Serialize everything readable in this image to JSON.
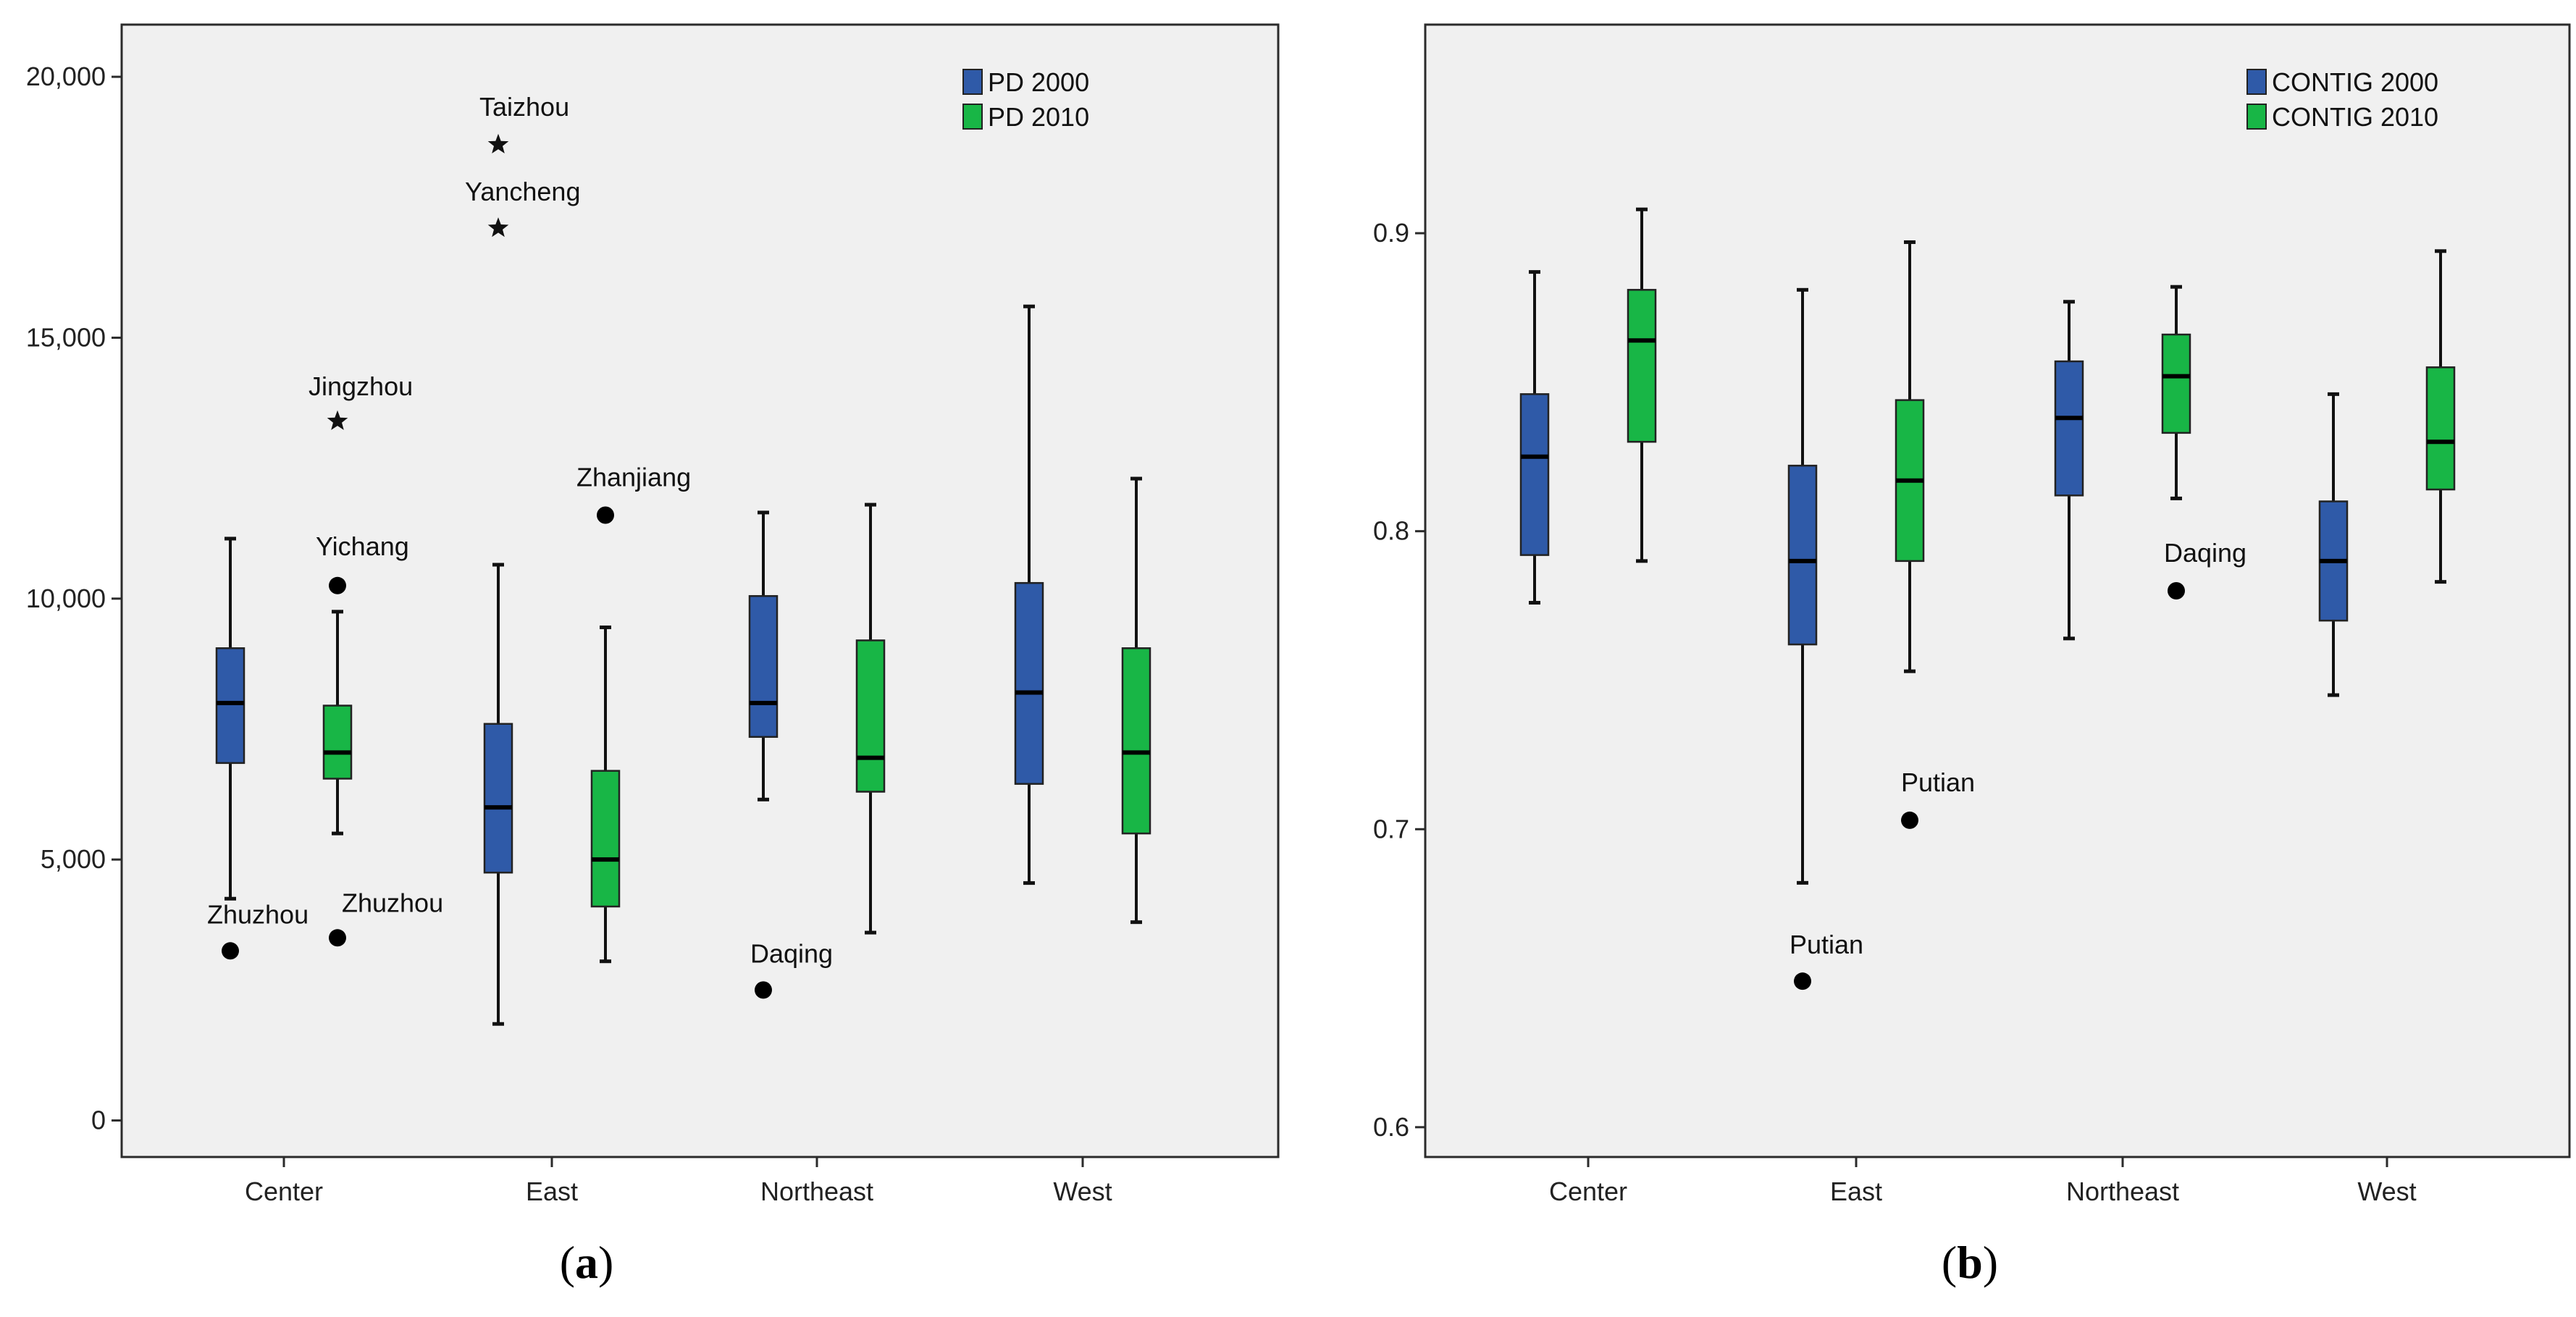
{
  "chart_data": [
    {
      "type": "boxplot",
      "panel_label": "(a)",
      "panel_letter": "a",
      "categories": [
        "Center",
        "East",
        "Northeast",
        "West"
      ],
      "ylim": [
        -700,
        21000
      ],
      "yticks": [
        0,
        5000,
        10000,
        15000,
        20000
      ],
      "ytick_labels": [
        "0",
        "5,000",
        "10,000",
        "15,000",
        "20,000"
      ],
      "colors": {
        "s0": "#2f5aa8",
        "s1": "#18b646",
        "background": "#f0f0f0"
      },
      "series": [
        {
          "name": "PD 2000",
          "boxes": [
            {
              "whisker_low": 4250,
              "q1": 6850,
              "median": 8000,
              "q3": 9050,
              "whisker_high": 11150
            },
            {
              "whisker_low": 1850,
              "q1": 4750,
              "median": 6000,
              "q3": 7600,
              "whisker_high": 10650
            },
            {
              "whisker_low": 6150,
              "q1": 7350,
              "median": 8000,
              "q3": 10050,
              "whisker_high": 11650
            },
            {
              "whisker_low": 4550,
              "q1": 6450,
              "median": 8200,
              "q3": 10300,
              "whisker_high": 15600
            }
          ]
        },
        {
          "name": "PD 2010",
          "boxes": [
            {
              "whisker_low": 5500,
              "q1": 6550,
              "median": 7050,
              "q3": 7950,
              "whisker_high": 9750
            },
            {
              "whisker_low": 3050,
              "q1": 4100,
              "median": 5000,
              "q3": 6700,
              "whisker_high": 9450
            },
            {
              "whisker_low": 3600,
              "q1": 6300,
              "median": 6950,
              "q3": 9200,
              "whisker_high": 11800
            },
            {
              "whisker_low": 3800,
              "q1": 5500,
              "median": 7050,
              "q3": 9050,
              "whisker_high": 12300
            }
          ]
        }
      ],
      "outliers": [
        {
          "category": 0,
          "series": 0,
          "value": 3250,
          "label": "Zhuzhou",
          "marker": "circle"
        },
        {
          "category": 0,
          "series": 1,
          "value": 3500,
          "label": "Zhuzhou",
          "marker": "circle"
        },
        {
          "category": 0,
          "series": 1,
          "value": 10250,
          "label": "Yichang",
          "marker": "circle"
        },
        {
          "category": 0,
          "series": 1,
          "value": 13400,
          "label": "Jingzhou",
          "marker": "star"
        },
        {
          "category": 1,
          "series": 0,
          "value": 17100,
          "label": "Yancheng",
          "marker": "star"
        },
        {
          "category": 1,
          "series": 0,
          "value": 18700,
          "label": "Taizhou",
          "marker": "star"
        },
        {
          "category": 1,
          "series": 1,
          "value": 11600,
          "label": "Zhanjiang",
          "marker": "circle"
        },
        {
          "category": 2,
          "series": 0,
          "value": 2500,
          "label": "Daqing",
          "marker": "circle"
        }
      ]
    },
    {
      "type": "boxplot",
      "panel_label": "(b)",
      "panel_letter": "b",
      "categories": [
        "Center",
        "East",
        "Northeast",
        "West"
      ],
      "ylim": [
        0.59,
        0.97
      ],
      "yticks": [
        0.6,
        0.7,
        0.8,
        0.9
      ],
      "ytick_labels": [
        "0.6",
        "0.7",
        "0.8",
        "0.9"
      ],
      "colors": {
        "s0": "#2f5aa8",
        "s1": "#18b646",
        "background": "#f0f0f0"
      },
      "series": [
        {
          "name": "CONTIG 2000",
          "boxes": [
            {
              "whisker_low": 0.776,
              "q1": 0.792,
              "median": 0.825,
              "q3": 0.846,
              "whisker_high": 0.887
            },
            {
              "whisker_low": 0.682,
              "q1": 0.762,
              "median": 0.79,
              "q3": 0.822,
              "whisker_high": 0.881
            },
            {
              "whisker_low": 0.764,
              "q1": 0.812,
              "median": 0.838,
              "q3": 0.857,
              "whisker_high": 0.877
            },
            {
              "whisker_low": 0.745,
              "q1": 0.77,
              "median": 0.79,
              "q3": 0.81,
              "whisker_high": 0.846
            }
          ]
        },
        {
          "name": "CONTIG 2010",
          "boxes": [
            {
              "whisker_low": 0.79,
              "q1": 0.83,
              "median": 0.864,
              "q3": 0.881,
              "whisker_high": 0.908
            },
            {
              "whisker_low": 0.753,
              "q1": 0.79,
              "median": 0.817,
              "q3": 0.844,
              "whisker_high": 0.897
            },
            {
              "whisker_low": 0.811,
              "q1": 0.833,
              "median": 0.852,
              "q3": 0.866,
              "whisker_high": 0.882
            },
            {
              "whisker_low": 0.783,
              "q1": 0.814,
              "median": 0.83,
              "q3": 0.855,
              "whisker_high": 0.894
            }
          ]
        }
      ],
      "outliers": [
        {
          "category": 1,
          "series": 0,
          "value": 0.649,
          "label": "Putian",
          "marker": "circle"
        },
        {
          "category": 1,
          "series": 1,
          "value": 0.703,
          "label": "Putian",
          "marker": "circle"
        },
        {
          "category": 2,
          "series": 1,
          "value": 0.78,
          "label": "Daqing",
          "marker": "circle"
        }
      ]
    }
  ]
}
